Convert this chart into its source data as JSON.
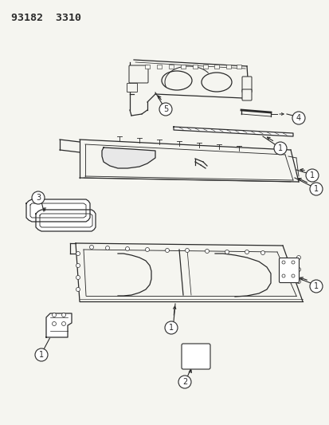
{
  "title": "93182  3310",
  "bg_color": "#f5f5f0",
  "line_color": "#2a2a2a",
  "label_color": "#2a2a2a",
  "figsize": [
    4.14,
    5.33
  ],
  "dpi": 100
}
